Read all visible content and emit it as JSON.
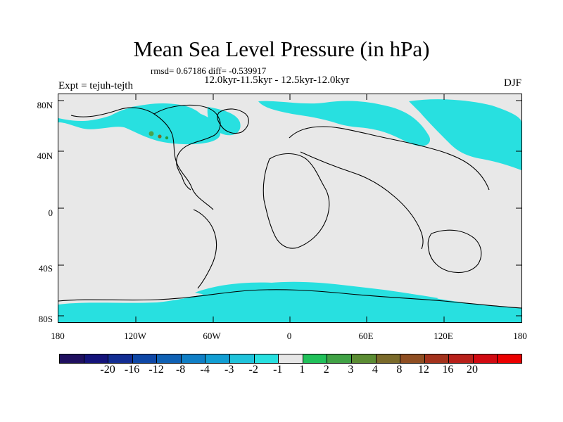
{
  "title": "Mean Sea Level Pressure (in hPa)",
  "stats_line": "rmsd= 0.67186 diff= -0.539917",
  "period_line": "12.0kyr-11.5kyr - 12.5kyr-12.0kyr",
  "left_label": "Expt = tejuh-tejth",
  "right_label": "DJF",
  "lat_ticks": [
    "80N",
    "40N",
    "0",
    "40S",
    "80S"
  ],
  "lon_ticks": [
    "180",
    "120W",
    "60W",
    "0",
    "60E",
    "120E",
    "180"
  ],
  "colorbar": {
    "colors": [
      "#1f0f5f",
      "#14137a",
      "#122d93",
      "#0e47a6",
      "#0f61b4",
      "#107fc6",
      "#129ed3",
      "#20c3db",
      "#28e0e0",
      "#e6e6e6",
      "#21c15a",
      "#40a245",
      "#5b8c33",
      "#7a6a2a",
      "#8f4e22",
      "#a3321c",
      "#b8201a",
      "#d10a12",
      "#eb0000"
    ],
    "labels": [
      "-20",
      "-16",
      "-12",
      "-8",
      "-4",
      "-3",
      "-2",
      "-1",
      "1",
      "2",
      "3",
      "4",
      "8",
      "12",
      "16",
      "20"
    ]
  }
}
